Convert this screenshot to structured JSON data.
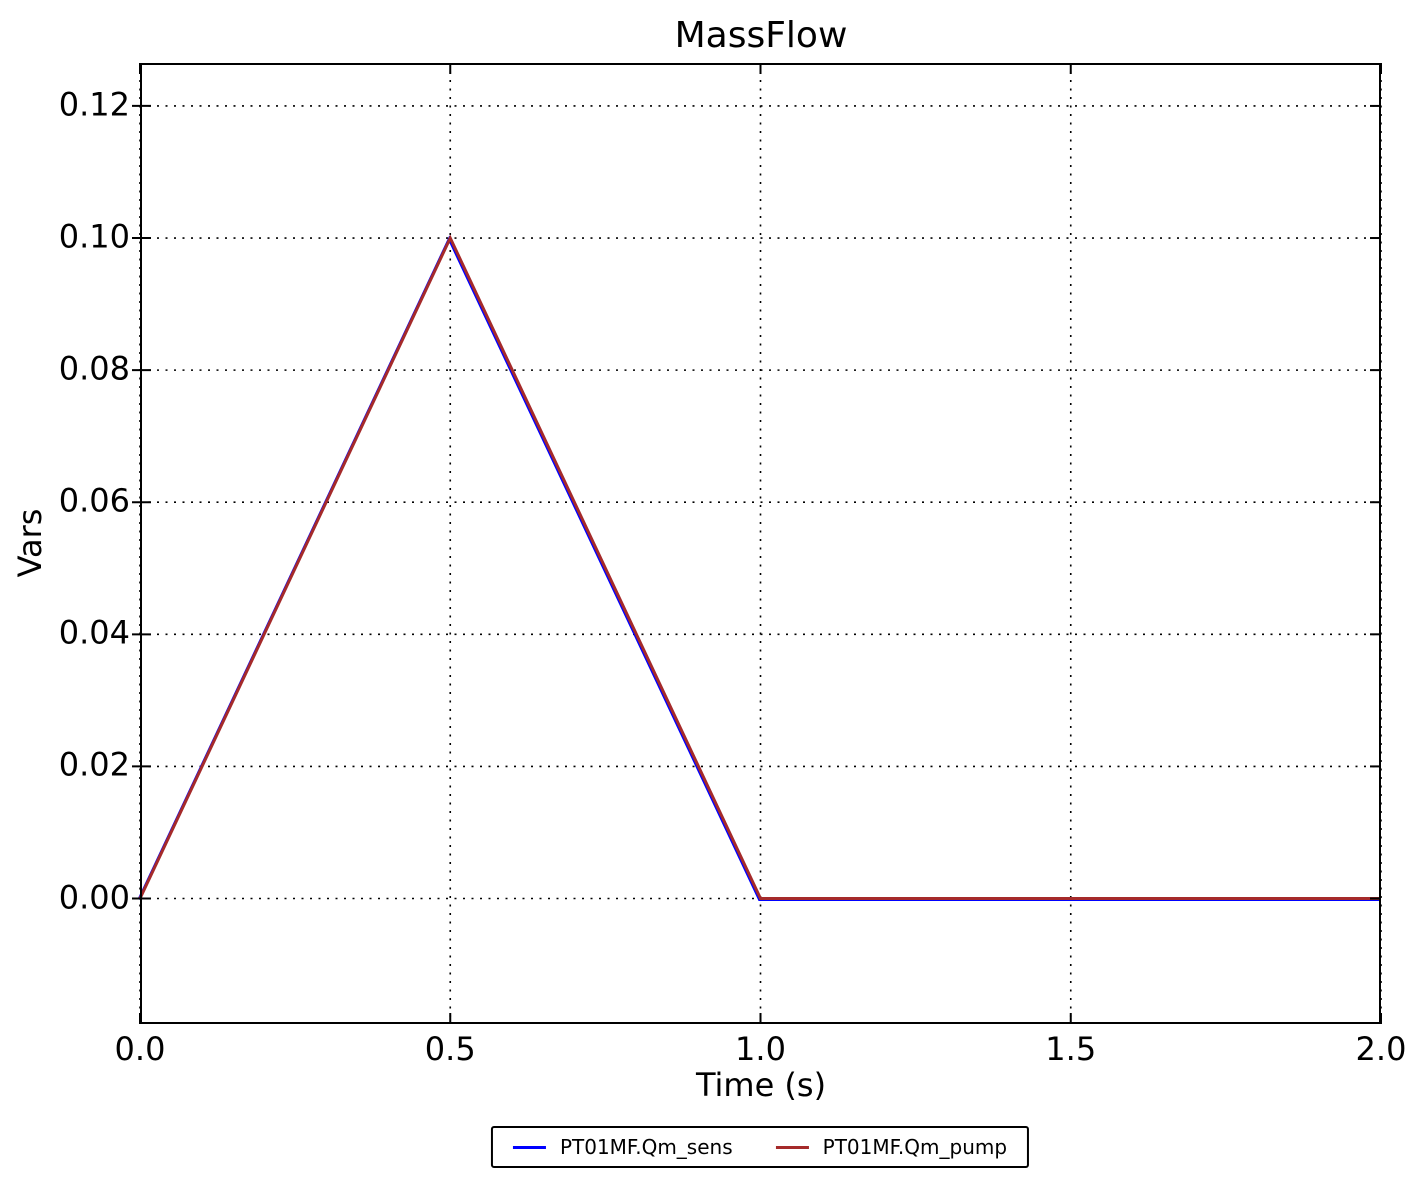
{
  "figure": {
    "background": "#ffffff",
    "frame_color": "#000000",
    "grid_color": "#000000"
  },
  "chart_data": {
    "type": "line",
    "title": "MassFlow",
    "xlabel": "Time (s)",
    "ylabel": "Vars",
    "xlim": [
      0.0,
      2.0
    ],
    "ylim": [
      -0.019,
      0.1265
    ],
    "xticks": [
      0.0,
      0.5,
      1.0,
      1.5,
      2.0
    ],
    "xtick_labels": [
      "0.0",
      "0.5",
      "1.0",
      "1.5",
      "2.0"
    ],
    "yticks": [
      0.0,
      0.02,
      0.04,
      0.06,
      0.08,
      0.1,
      0.12
    ],
    "ytick_labels": [
      "0.00",
      "0.02",
      "0.04",
      "0.06",
      "0.08",
      "0.10",
      "0.12"
    ],
    "grid": true,
    "grid_style": "dotted",
    "legend_position": "bottom-center",
    "series": [
      {
        "name": "PT01MF.Qm_sens",
        "color": "#0000ff",
        "x": [
          0.0,
          0.5,
          1.0,
          2.0
        ],
        "y": [
          0.0,
          0.1,
          0.0,
          0.0
        ]
      },
      {
        "name": "PT01MF.Qm_pump",
        "color": "#a52a2a",
        "x": [
          0.0,
          0.5,
          1.0,
          2.0
        ],
        "y": [
          0.0,
          0.1,
          0.0,
          0.0
        ]
      }
    ]
  }
}
